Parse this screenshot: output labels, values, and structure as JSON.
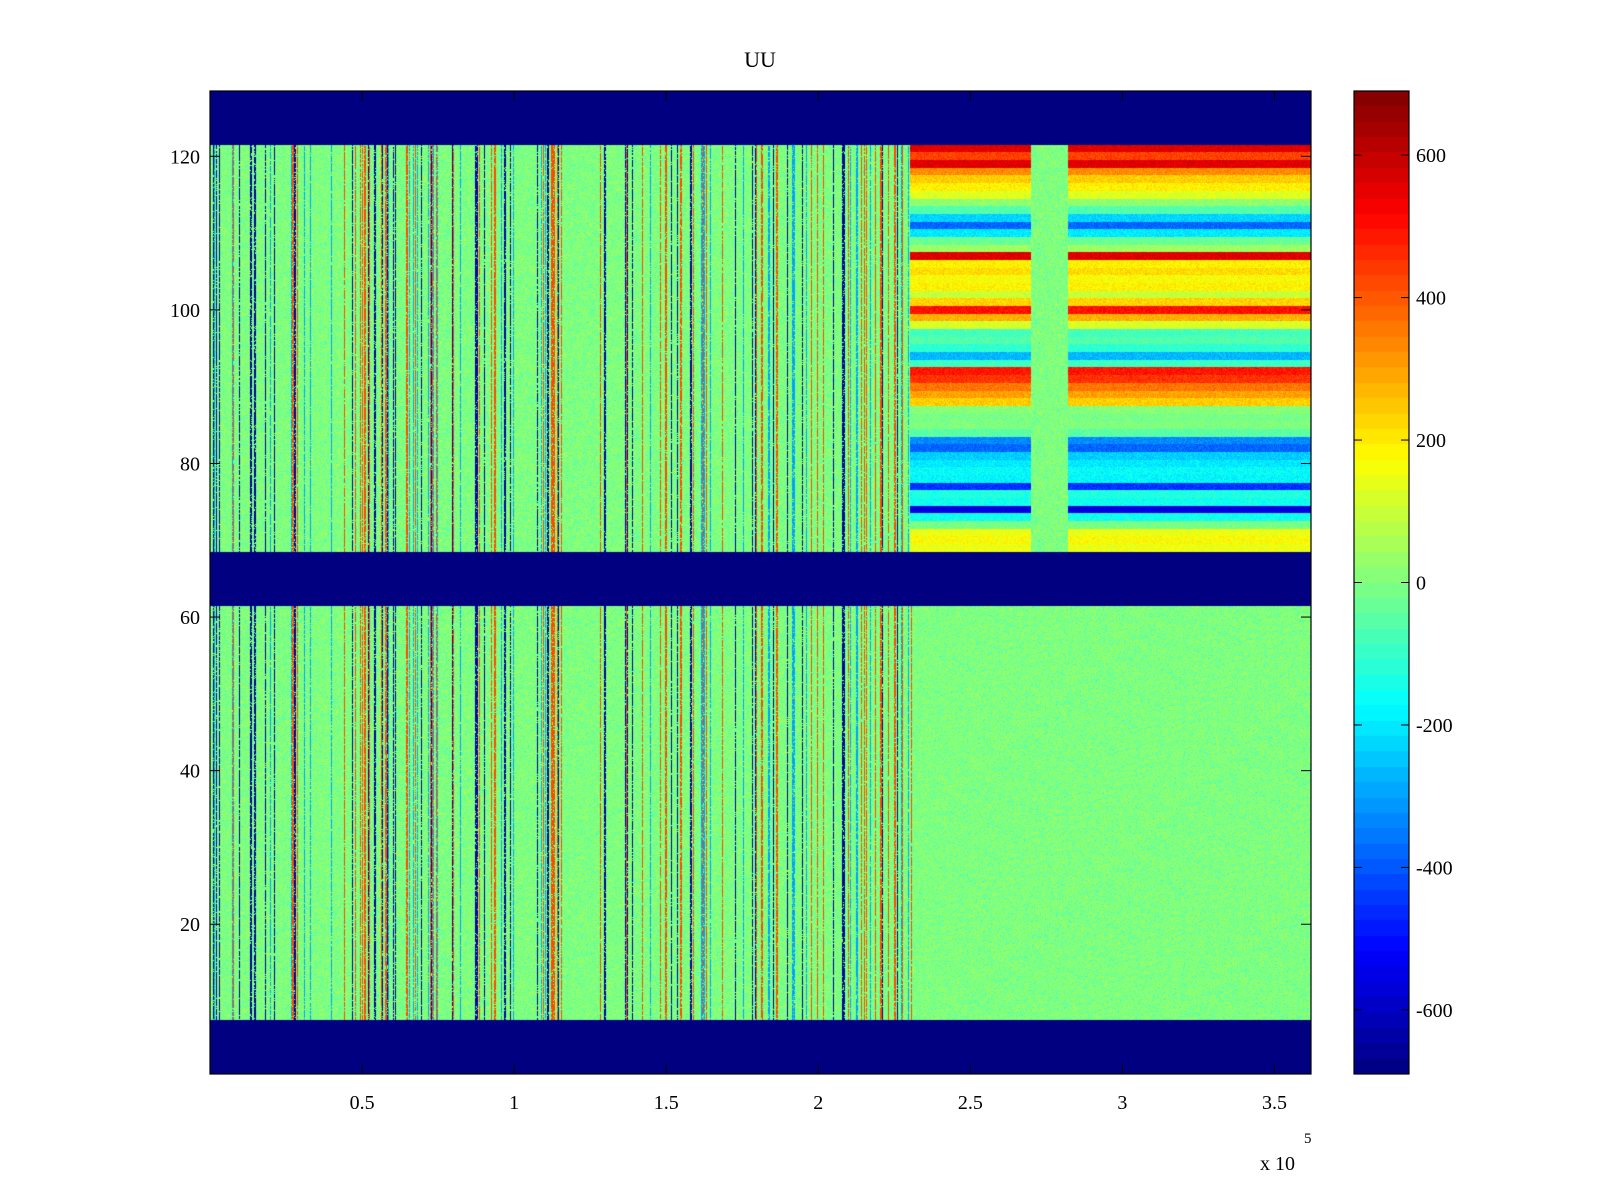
{
  "chart_data": {
    "type": "heatmap",
    "title": "UU",
    "xlabel": "",
    "ylabel": "",
    "x_exponent_label": "x 10",
    "x_exponent_power": "5",
    "x_ticks": [
      0.5,
      1,
      1.5,
      2,
      2.5,
      3,
      3.5
    ],
    "x_tick_labels": [
      "0.5",
      "1",
      "1.5",
      "2",
      "2.5",
      "3",
      "3.5"
    ],
    "xlim": [
      0,
      3.62
    ],
    "y_ticks": [
      20,
      40,
      60,
      80,
      100,
      120
    ],
    "y_tick_labels": [
      "20",
      "40",
      "60",
      "80",
      "100",
      "120"
    ],
    "ylim": [
      0.5,
      128.5
    ],
    "colorbar": {
      "colormap": "jet",
      "range": [
        -690,
        690
      ],
      "ticks": [
        -600,
        -400,
        -200,
        0,
        200,
        400,
        600
      ],
      "tick_labels": [
        "-600",
        "-400",
        "-200",
        "0",
        "200",
        "400",
        "600"
      ]
    },
    "masked_row_bands": [
      {
        "rows": [
          1,
          7
        ],
        "value": -690
      },
      {
        "rows": [
          62,
          68
        ],
        "value": -690
      },
      {
        "rows": [
          122,
          128
        ],
        "value": -690
      }
    ],
    "active_column_segments": [
      {
        "x_range": [
          2.3,
          2.7
        ],
        "description_value_scale": 1.0
      },
      {
        "x_range": [
          2.82,
          3.62
        ],
        "description_value_scale": 1.0
      }
    ],
    "upper_block_row_values": [
      {
        "row": 69,
        "value": 150
      },
      {
        "row": 70,
        "value": 170
      },
      {
        "row": 71,
        "value": 150
      },
      {
        "row": 72,
        "value": -10
      },
      {
        "row": 73,
        "value": -150
      },
      {
        "row": 74,
        "value": -560
      },
      {
        "row": 75,
        "value": -150
      },
      {
        "row": 76,
        "value": -130
      },
      {
        "row": 77,
        "value": -450
      },
      {
        "row": 78,
        "value": -180
      },
      {
        "row": 79,
        "value": -170
      },
      {
        "row": 80,
        "value": -200
      },
      {
        "row": 81,
        "value": -240
      },
      {
        "row": 82,
        "value": -380
      },
      {
        "row": 83,
        "value": -330
      },
      {
        "row": 84,
        "value": -50
      },
      {
        "row": 85,
        "value": 0
      },
      {
        "row": 86,
        "value": -10
      },
      {
        "row": 87,
        "value": 10
      },
      {
        "row": 88,
        "value": 240
      },
      {
        "row": 89,
        "value": 300
      },
      {
        "row": 90,
        "value": 360
      },
      {
        "row": 91,
        "value": 450
      },
      {
        "row": 92,
        "value": 490
      },
      {
        "row": 93,
        "value": -90
      },
      {
        "row": 94,
        "value": -270
      },
      {
        "row": 95,
        "value": -110
      },
      {
        "row": 96,
        "value": -60
      },
      {
        "row": 97,
        "value": -80
      },
      {
        "row": 98,
        "value": 120
      },
      {
        "row": 99,
        "value": 280
      },
      {
        "row": 100,
        "value": 500
      },
      {
        "row": 101,
        "value": 230
      },
      {
        "row": 102,
        "value": 100
      },
      {
        "row": 103,
        "value": 190
      },
      {
        "row": 104,
        "value": 170
      },
      {
        "row": 105,
        "value": 220
      },
      {
        "row": 106,
        "value": 190
      },
      {
        "row": 107,
        "value": 560
      },
      {
        "row": 108,
        "value": 40
      },
      {
        "row": 109,
        "value": -30
      },
      {
        "row": 110,
        "value": -200
      },
      {
        "row": 111,
        "value": -380
      },
      {
        "row": 112,
        "value": -230
      },
      {
        "row": 113,
        "value": -60
      },
      {
        "row": 114,
        "value": 20
      },
      {
        "row": 115,
        "value": 130
      },
      {
        "row": 116,
        "value": 190
      },
      {
        "row": 117,
        "value": 240
      },
      {
        "row": 118,
        "value": 330
      },
      {
        "row": 119,
        "value": 560
      },
      {
        "row": 120,
        "value": 430
      },
      {
        "row": 121,
        "value": 560
      }
    ],
    "background_value_range": [
      -60,
      60
    ],
    "grid": false,
    "legend": "colorbar-right"
  }
}
